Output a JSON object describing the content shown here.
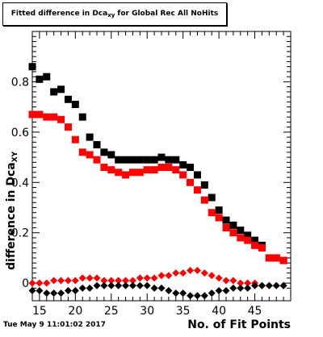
{
  "chart_data": {
    "type": "scatter",
    "title_main": "Fitted difference in Dca",
    "title_sub": "xy",
    "title_rest": " for Global Rec All NoHits",
    "xlabel": "No. of Fit Points",
    "ylabel_main": "difference in Dca",
    "ylabel_sub": "XY",
    "xlim": [
      14,
      50
    ],
    "ylim": [
      -0.07,
      1.0
    ],
    "xticks": [
      15,
      20,
      25,
      30,
      35,
      40,
      45
    ],
    "yticks": [
      0,
      0.2,
      0.4,
      0.6,
      0.8
    ],
    "ytick_labels": [
      "0",
      "0.2",
      "0.4",
      "0.6",
      "0.8"
    ],
    "grid": false,
    "x": [
      14,
      15,
      16,
      17,
      18,
      19,
      20,
      21,
      22,
      23,
      24,
      25,
      26,
      27,
      28,
      29,
      30,
      31,
      32,
      33,
      34,
      35,
      36,
      37,
      38,
      39,
      40,
      41,
      42,
      43,
      44,
      45,
      46,
      47,
      48,
      49
    ],
    "series": [
      {
        "marker": "square",
        "color": "#000000",
        "values": [
          0.86,
          0.81,
          0.82,
          0.76,
          0.77,
          0.73,
          0.71,
          0.66,
          0.58,
          0.55,
          0.52,
          0.51,
          0.49,
          0.49,
          0.49,
          0.49,
          0.49,
          0.49,
          0.5,
          0.49,
          0.49,
          0.47,
          0.46,
          0.43,
          0.39,
          0.34,
          0.29,
          0.25,
          0.23,
          0.21,
          0.19,
          0.17,
          0.15,
          0.1,
          0.1,
          0.09
        ]
      },
      {
        "marker": "square",
        "color": "#ff0000",
        "values": [
          0.67,
          0.67,
          0.66,
          0.66,
          0.65,
          0.62,
          0.57,
          0.52,
          0.51,
          0.49,
          0.46,
          0.45,
          0.44,
          0.43,
          0.44,
          0.44,
          0.45,
          0.45,
          0.46,
          0.46,
          0.45,
          0.43,
          0.4,
          0.37,
          0.33,
          0.28,
          0.26,
          0.22,
          0.2,
          0.18,
          0.17,
          0.15,
          0.14,
          0.1,
          0.1,
          0.09
        ]
      },
      {
        "marker": "diamond",
        "color": "#ff0000",
        "values": [
          0.0,
          0.0,
          0.0,
          0.01,
          0.01,
          0.01,
          0.01,
          0.02,
          0.02,
          0.02,
          0.01,
          0.01,
          0.01,
          0.01,
          0.01,
          0.02,
          0.02,
          0.02,
          0.03,
          0.03,
          0.04,
          0.04,
          0.05,
          0.05,
          0.04,
          0.03,
          0.02,
          0.01,
          0.01,
          0.0,
          0.0,
          0.0,
          -0.01,
          -0.01,
          -0.01,
          -0.01
        ]
      },
      {
        "marker": "diamond",
        "color": "#000000",
        "values": [
          -0.03,
          -0.03,
          -0.04,
          -0.04,
          -0.04,
          -0.03,
          -0.03,
          -0.02,
          -0.02,
          -0.01,
          -0.01,
          -0.01,
          -0.01,
          -0.01,
          -0.01,
          -0.01,
          -0.01,
          -0.02,
          -0.02,
          -0.03,
          -0.04,
          -0.04,
          -0.05,
          -0.05,
          -0.05,
          -0.04,
          -0.03,
          -0.03,
          -0.02,
          -0.02,
          -0.02,
          -0.01,
          -0.01,
          -0.01,
          -0.01,
          -0.01
        ]
      }
    ]
  },
  "footer": {
    "timestamp": "Tue May  9 11:01:02 2017"
  }
}
